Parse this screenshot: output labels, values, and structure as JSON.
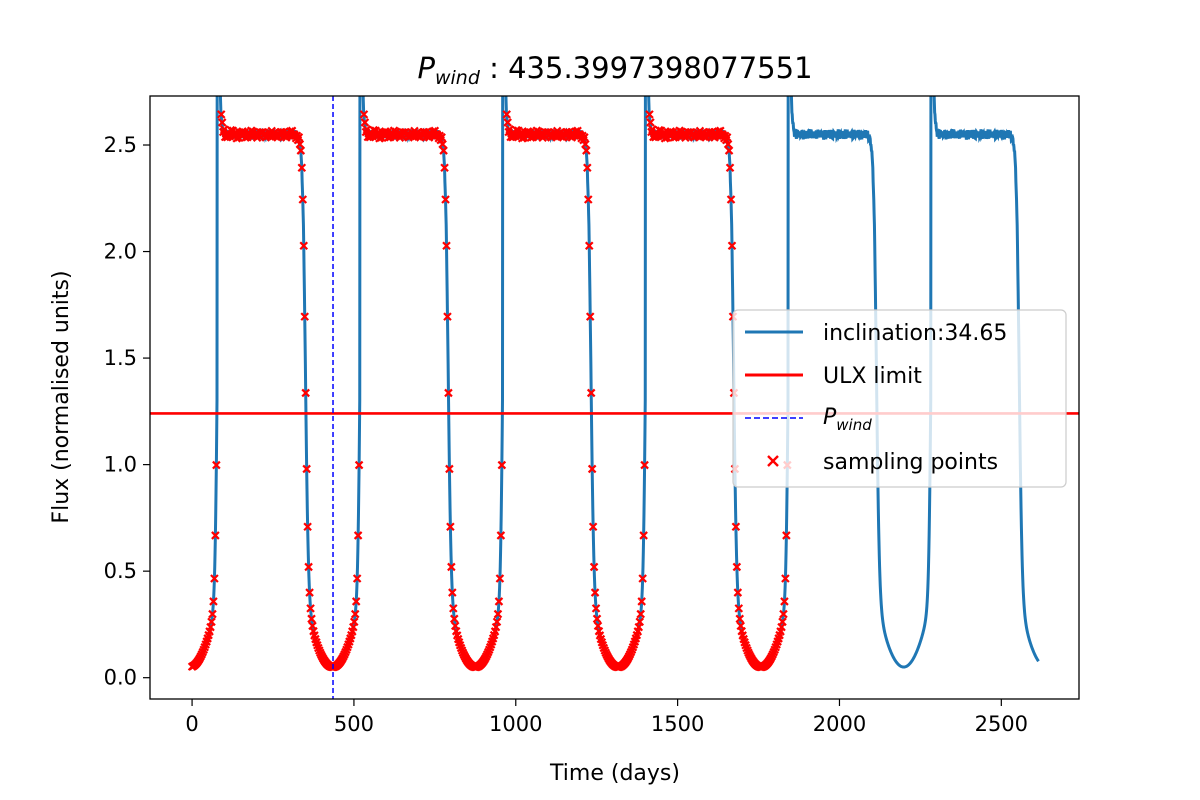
{
  "chart_data": {
    "type": "line",
    "title_prefix": "P",
    "title_subscript": "wind",
    "title_value": " : 435.3997398077551",
    "xlabel": "Time (days)",
    "ylabel": "Flux (normalised units)",
    "xlim": [
      -130,
      2740
    ],
    "ylim": [
      -0.1,
      2.73
    ],
    "xticks": [
      0,
      500,
      1000,
      1500,
      2000,
      2500
    ],
    "yticks": [
      0.0,
      0.5,
      1.0,
      1.5,
      2.0,
      2.5
    ],
    "xtick_labels": [
      "0",
      "500",
      "1000",
      "1500",
      "2000",
      "2500"
    ],
    "ytick_labels": [
      "0.0",
      "0.5",
      "1.0",
      "1.5",
      "2.0",
      "2.5"
    ],
    "series": [
      {
        "name": "inclination:34.65",
        "color": "#1f77b4",
        "model": {
          "period": 441,
          "x_max": 2615,
          "low": 0.05,
          "high": 2.55,
          "rise_centre": 78,
          "fall_centre": 350,
          "rise_width": 3.5,
          "fall_width": 4.5,
          "trough_curvature": 0.0009
        }
      }
    ],
    "ulx_limit": {
      "name": "ULX limit",
      "y": 1.24,
      "color": "#ff0000"
    },
    "p_wind": {
      "name_prefix": "P",
      "name_subscript": "wind",
      "x": 435.4,
      "color": "#0000ff"
    },
    "sampling_points": {
      "name": "sampling points",
      "color": "#ff0000",
      "x_max": 1850
    },
    "legend": {
      "placement": "center-right"
    }
  }
}
